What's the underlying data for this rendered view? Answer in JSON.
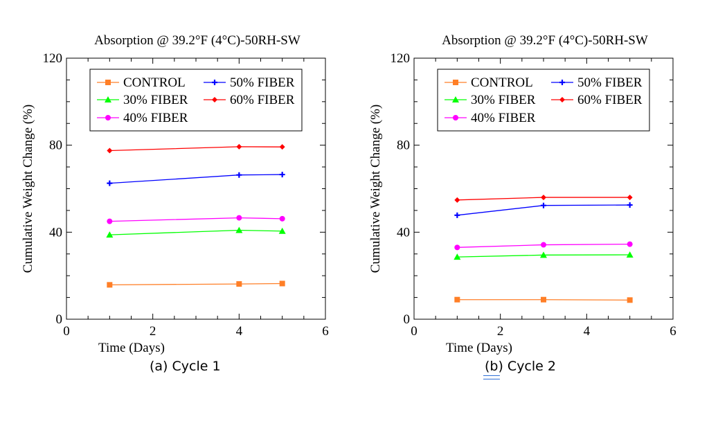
{
  "panels": [
    {
      "caption": "(a)  Cycle 1",
      "chart_data": {
        "type": "line",
        "title": "Absorption @ 39.2°F (4°C)-50RH-SW",
        "xlabel": "Time (Days)",
        "ylabel": "Cumulative Weight Change (%)",
        "xlim": [
          0,
          6
        ],
        "ylim": [
          0,
          120
        ],
        "x_ticks": [
          0,
          2,
          4,
          6
        ],
        "y_ticks": [
          0,
          40,
          80,
          120
        ],
        "grid": false,
        "legend_position": "top",
        "series": [
          {
            "name": "CONTROL",
            "color": "#ff7f27",
            "marker": "square",
            "x": [
              1,
              4,
              5
            ],
            "y": [
              15.8,
              16.2,
              16.4
            ]
          },
          {
            "name": "50% FIBER",
            "color": "#0000ff",
            "marker": "plus",
            "x": [
              1,
              4,
              5
            ],
            "y": [
              62.5,
              66.3,
              66.5
            ]
          },
          {
            "name": "30% FIBER",
            "color": "#00ff00",
            "marker": "triangle",
            "x": [
              1,
              4,
              5
            ],
            "y": [
              38.8,
              40.9,
              40.5
            ]
          },
          {
            "name": "60% FIBER",
            "color": "#ff0000",
            "marker": "diamond",
            "x": [
              1,
              4,
              5
            ],
            "y": [
              77.5,
              79.3,
              79.2
            ]
          },
          {
            "name": "40% FIBER",
            "color": "#ff00ff",
            "marker": "circle",
            "x": [
              1,
              4,
              5
            ],
            "y": [
              45.0,
              46.6,
              46.2
            ]
          }
        ]
      }
    },
    {
      "caption": "(b) Cycle 2",
      "chart_data": {
        "type": "line",
        "title": "Absorption @ 39.2°F (4°C)-50RH-SW",
        "xlabel": "Time (Days)",
        "ylabel": "Cumulative Weight Change (%)",
        "xlim": [
          0,
          6
        ],
        "ylim": [
          0,
          120
        ],
        "x_ticks": [
          0,
          2,
          4,
          6
        ],
        "y_ticks": [
          0,
          40,
          80,
          120
        ],
        "grid": false,
        "legend_position": "top",
        "series": [
          {
            "name": "CONTROL",
            "color": "#ff7f27",
            "marker": "square",
            "x": [
              1,
              3,
              5
            ],
            "y": [
              9.0,
              9.0,
              8.8
            ]
          },
          {
            "name": "50% FIBER",
            "color": "#0000ff",
            "marker": "plus",
            "x": [
              1,
              3,
              5
            ],
            "y": [
              47.8,
              52.3,
              52.5
            ]
          },
          {
            "name": "30% FIBER",
            "color": "#00ff00",
            "marker": "triangle",
            "x": [
              1,
              3,
              5
            ],
            "y": [
              28.6,
              29.5,
              29.6
            ]
          },
          {
            "name": "60% FIBER",
            "color": "#ff0000",
            "marker": "diamond",
            "x": [
              1,
              3,
              5
            ],
            "y": [
              54.8,
              56.0,
              56.0
            ]
          },
          {
            "name": "40% FIBER",
            "color": "#ff00ff",
            "marker": "circle",
            "x": [
              1,
              3,
              5
            ],
            "y": [
              33.0,
              34.2,
              34.5
            ]
          }
        ]
      }
    }
  ]
}
